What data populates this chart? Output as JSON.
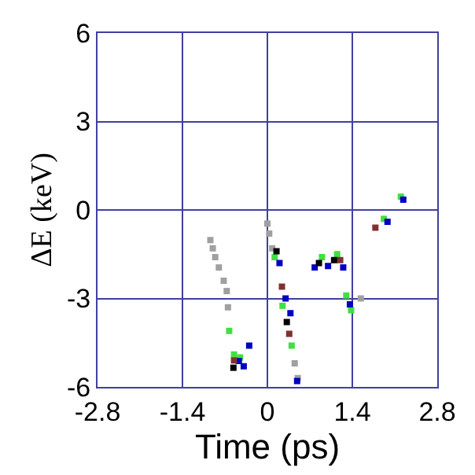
{
  "chart_data": {
    "type": "scatter",
    "xlabel": "Time (ps)",
    "ylabel": "ΔE (keV)",
    "xlim": [
      -2.8,
      2.8
    ],
    "xticks": [
      -2.8,
      -1.4,
      0,
      1.4,
      2.8
    ],
    "ylim": [
      -6,
      6
    ],
    "yticks": [
      -6,
      -3,
      0,
      3,
      6
    ],
    "grid": true,
    "marker": "square",
    "series": [
      {
        "color": "#a0a0a0",
        "x": [
          -0.94,
          -0.9,
          -0.86,
          -0.8,
          -0.72,
          -0.67,
          -0.65,
          0.0,
          0.03,
          0.08,
          0.45,
          0.5,
          1.54
        ],
        "values": [
          -1.02,
          -1.3,
          -1.6,
          -1.95,
          -2.4,
          -2.75,
          -3.3,
          -0.46,
          -0.8,
          -1.3,
          -5.2,
          -5.7,
          -3.0
        ]
      },
      {
        "color": "#40e040",
        "x": [
          -0.63,
          -0.55,
          -0.45,
          0.12,
          0.25,
          0.4,
          0.9,
          1.15,
          1.3,
          1.38,
          1.92,
          2.2
        ],
        "values": [
          -4.1,
          -4.9,
          -5.0,
          -1.6,
          -3.25,
          -4.6,
          -1.6,
          -1.5,
          -2.9,
          -3.4,
          -0.3,
          0.45
        ]
      },
      {
        "color": "#0000c0",
        "x": [
          -0.47,
          -0.39,
          -0.3,
          0.2,
          0.3,
          0.38,
          0.49,
          0.78,
          1.0,
          1.25,
          1.36,
          1.98,
          2.24
        ],
        "values": [
          -5.12,
          -5.3,
          -4.6,
          -1.8,
          -3.0,
          -3.5,
          -5.8,
          -1.95,
          -1.9,
          -1.95,
          -3.2,
          -0.4,
          0.35
        ]
      },
      {
        "color": "#803030",
        "x": [
          -0.55,
          0.24,
          0.36,
          1.2,
          1.78
        ],
        "values": [
          -5.1,
          -2.6,
          -4.2,
          -1.7,
          -0.6
        ]
      },
      {
        "color": "#000000",
        "x": [
          -0.56,
          0.15,
          0.32,
          0.85,
          1.1
        ],
        "values": [
          -5.35,
          -1.4,
          -3.8,
          -1.8,
          -1.7
        ]
      }
    ]
  }
}
